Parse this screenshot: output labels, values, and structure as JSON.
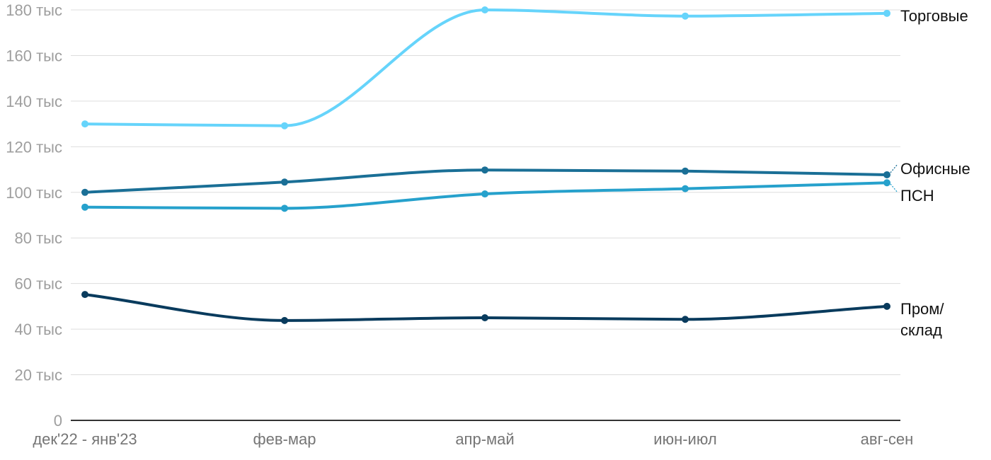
{
  "chart_data": {
    "type": "line",
    "categories": [
      "дек'22 - янв'23",
      "фев-мар",
      "апр-май",
      "июн-июл",
      "авг-сен"
    ],
    "y_ticks": [
      "0",
      "20 тыс",
      "40 тыс",
      "60 тыс",
      "80 тыс",
      "100 тыс",
      "120 тыс",
      "140 тыс",
      "160 тыс",
      "180 тыс"
    ],
    "ylim": [
      0,
      180000
    ],
    "grid": true,
    "legend": "inline labels at right end of each line",
    "series": [
      {
        "name": "Торговые",
        "color": "#66d4fb",
        "values": [
          130000,
          129200,
          180000,
          177300,
          178500
        ]
      },
      {
        "name": "Офисные",
        "color": "#1a6f96",
        "values": [
          100000,
          104500,
          109800,
          109300,
          107700
        ]
      },
      {
        "name": "ПСН",
        "color": "#26a1cc",
        "values": [
          93500,
          93000,
          99300,
          101600,
          104200
        ]
      },
      {
        "name": "Пром/ склад",
        "color": "#093b5d",
        "values": [
          55200,
          43800,
          45000,
          44300,
          50000
        ]
      }
    ]
  }
}
